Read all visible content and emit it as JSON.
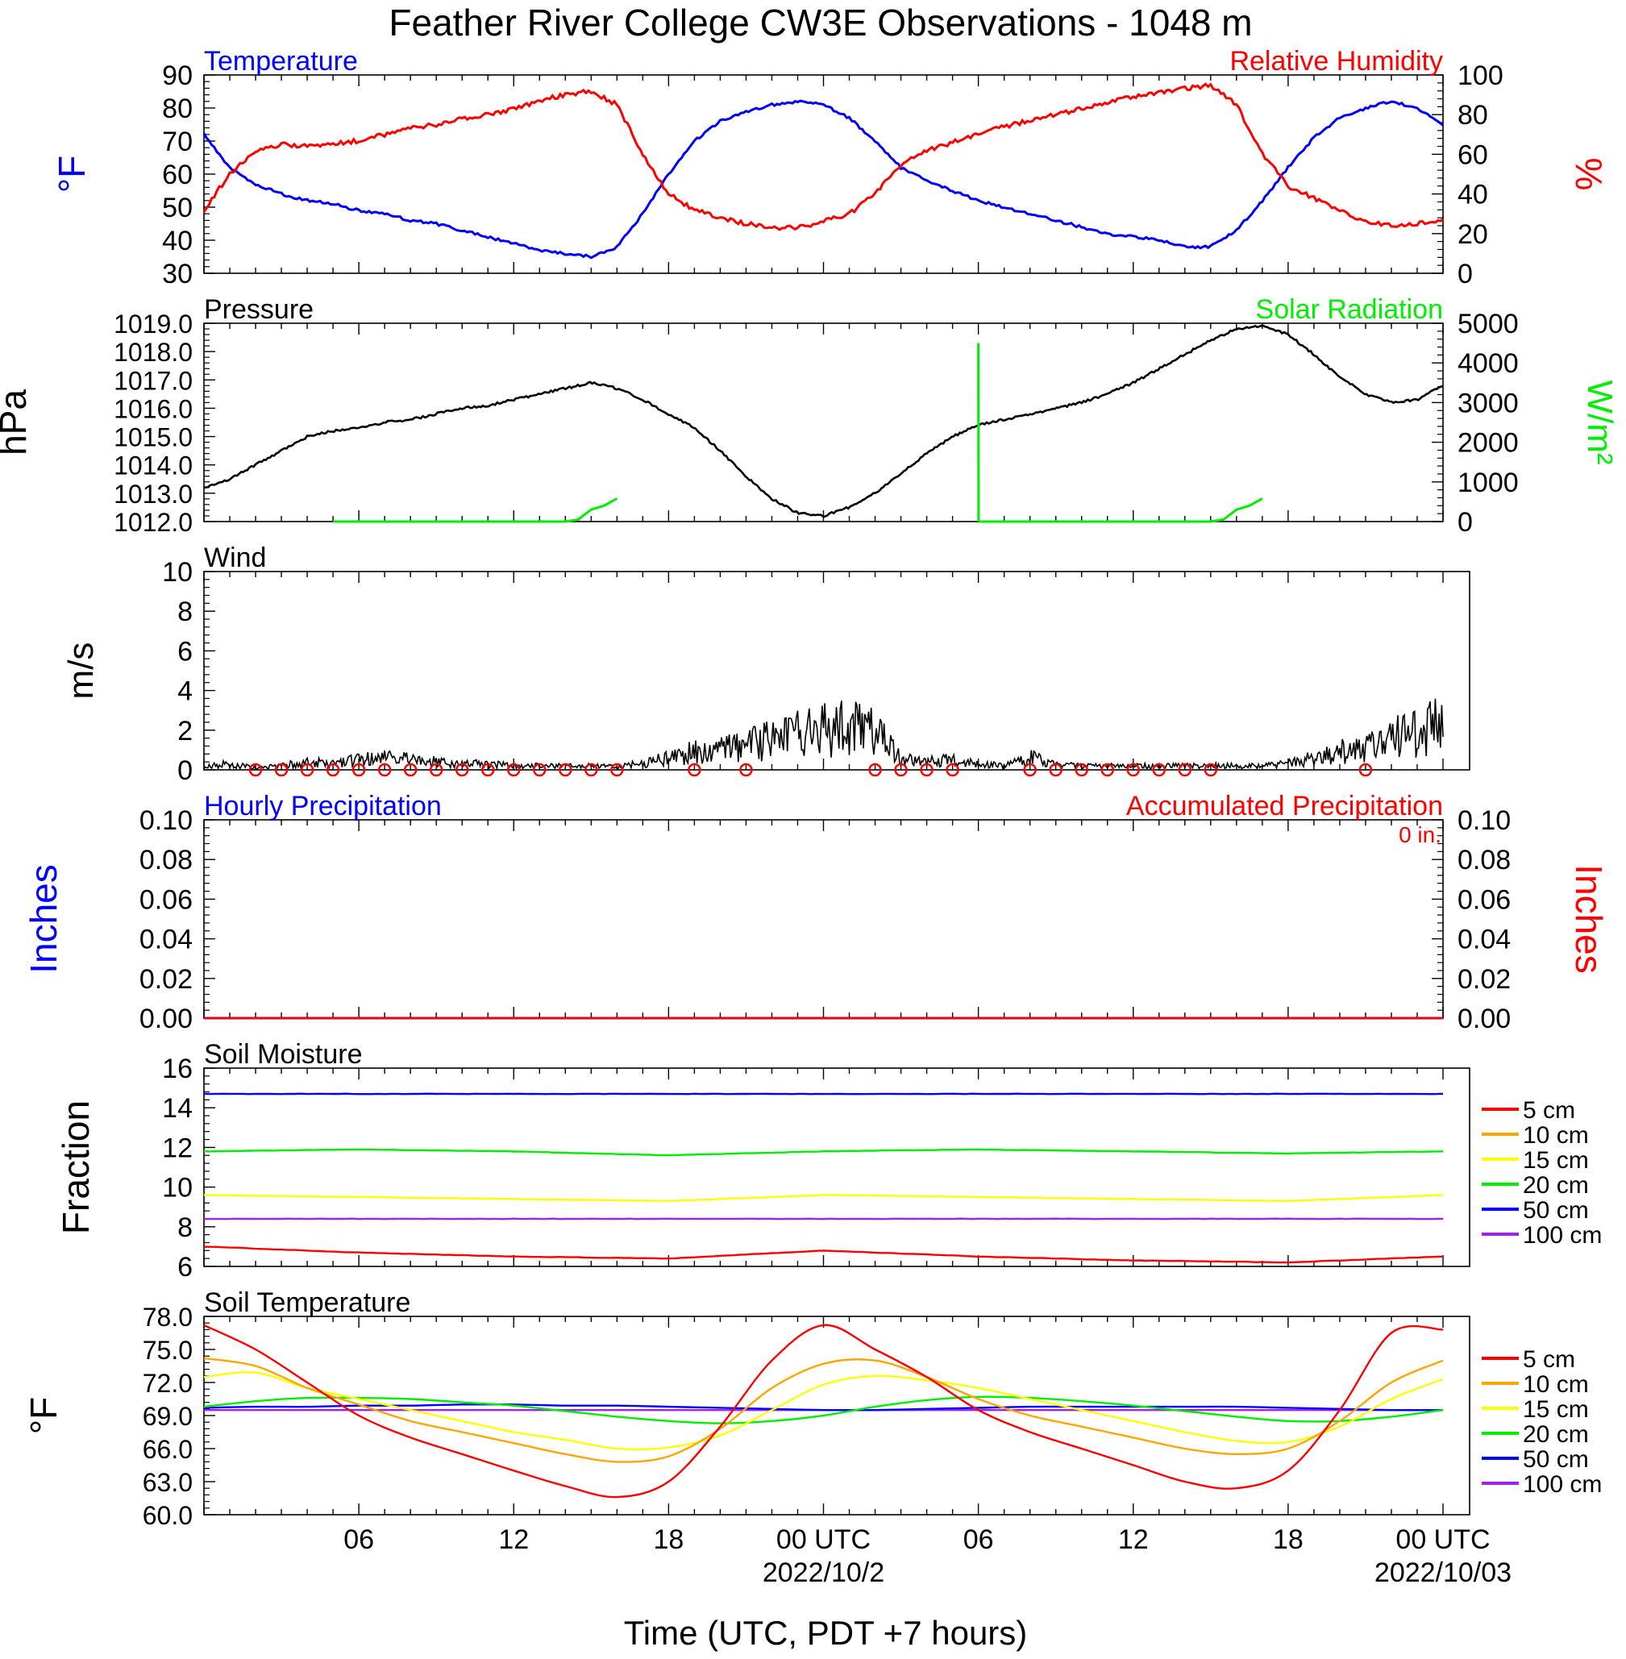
{
  "title": "Feather River College CW3E Observations - 1048 m",
  "x_axis": {
    "label": "Time (UTC, PDT +7 hours)",
    "ticks": [
      "06",
      "12",
      "18",
      "00 UTC",
      "06",
      "12",
      "18",
      "00 UTC"
    ],
    "dates": [
      "2022/10/2",
      "2022/10/03"
    ]
  },
  "colors": {
    "temperature": "#0000ff",
    "humidity": "#ff0000",
    "pressure": "#000000",
    "solar": "#00ee00",
    "wind": "#000000",
    "wind_barb": "#ff0000",
    "hourly_precip": "#0000ff",
    "accum_precip": "#ff0000",
    "depth_5": "#ff0000",
    "depth_10": "#ffa500",
    "depth_15": "#ffff00",
    "depth_20": "#00ee00",
    "depth_50": "#0000ff",
    "depth_100": "#a020f0"
  },
  "chart_data": [
    {
      "type": "line",
      "panel": "temperature-humidity",
      "left_title": "Temperature",
      "right_title": "Relative Humidity",
      "ylabel_left": "oF",
      "ylabel_right": "%",
      "ylim_left": [
        30,
        90
      ],
      "ylim_right": [
        0,
        100
      ],
      "yticks_left": [
        "90",
        "80",
        "70",
        "60",
        "50",
        "40",
        "30"
      ],
      "yticks_right": [
        "100",
        "80",
        "60",
        "40",
        "20",
        "0"
      ],
      "x_hours": [
        0,
        1,
        2,
        3,
        4,
        5,
        6,
        7,
        8,
        9,
        10,
        11,
        12,
        13,
        14,
        15,
        16,
        17,
        18,
        19,
        20,
        21,
        22,
        23,
        24,
        25,
        26,
        27,
        28,
        29,
        30,
        31,
        32,
        33,
        34,
        35,
        36,
        37,
        38,
        39,
        40,
        41,
        42,
        43,
        44,
        45,
        46,
        47,
        48
      ],
      "series": [
        {
          "name": "Temperature",
          "axis": "left",
          "values": [
            72,
            62,
            57,
            54,
            52,
            51,
            49,
            48,
            46,
            45,
            43,
            41,
            39,
            37,
            36,
            35,
            38,
            48,
            60,
            70,
            76,
            79,
            81,
            82,
            81,
            77,
            70,
            62,
            58,
            55,
            52,
            50,
            48,
            46,
            44,
            42,
            41,
            40,
            38,
            38,
            43,
            52,
            62,
            71,
            77,
            80,
            82,
            80,
            75
          ]
        },
        {
          "name": "Relative Humidity",
          "axis": "right",
          "values": [
            32,
            50,
            62,
            65,
            64,
            65,
            67,
            70,
            73,
            75,
            78,
            80,
            83,
            87,
            90,
            92,
            85,
            60,
            40,
            32,
            28,
            25,
            23,
            23,
            26,
            30,
            40,
            55,
            62,
            66,
            70,
            74,
            77,
            80,
            83,
            86,
            89,
            91,
            93,
            95,
            85,
            60,
            44,
            38,
            32,
            26,
            24,
            25,
            27
          ]
        }
      ]
    },
    {
      "type": "line",
      "panel": "pressure-solar",
      "left_title": "Pressure",
      "right_title": "Solar Radiation",
      "ylabel_left": "hPa",
      "ylabel_right": "W/m2",
      "ylim_left": [
        1012,
        1019
      ],
      "ylim_right": [
        0,
        5000
      ],
      "yticks_left": [
        "1019.0",
        "1018.0",
        "1017.0",
        "1016.0",
        "1015.0",
        "1014.0",
        "1013.0",
        "1012.0"
      ],
      "yticks_right": [
        "5000",
        "4000",
        "3000",
        "2000",
        "1000",
        "0"
      ],
      "x_hours": [
        0,
        1,
        2,
        3,
        4,
        5,
        6,
        7,
        8,
        9,
        10,
        11,
        12,
        13,
        14,
        15,
        16,
        17,
        18,
        19,
        20,
        21,
        22,
        23,
        24,
        25,
        26,
        27,
        28,
        29,
        30,
        31,
        32,
        33,
        34,
        35,
        36,
        37,
        38,
        39,
        40,
        41,
        42,
        43,
        44,
        45,
        46,
        47,
        48
      ],
      "series": [
        {
          "name": "Pressure",
          "axis": "left",
          "values": [
            1013.2,
            1013.5,
            1014.0,
            1014.5,
            1015.0,
            1015.2,
            1015.3,
            1015.5,
            1015.6,
            1015.8,
            1016.0,
            1016.1,
            1016.3,
            1016.5,
            1016.7,
            1016.9,
            1016.7,
            1016.3,
            1015.8,
            1015.3,
            1014.5,
            1013.6,
            1012.8,
            1012.3,
            1012.2,
            1012.5,
            1013.0,
            1013.7,
            1014.4,
            1015.0,
            1015.4,
            1015.6,
            1015.8,
            1016.0,
            1016.2,
            1016.5,
            1016.9,
            1017.4,
            1017.9,
            1018.4,
            1018.8,
            1018.9,
            1018.6,
            1017.9,
            1017.1,
            1016.5,
            1016.2,
            1016.3,
            1016.8
          ]
        },
        {
          "name": "Solar Radiation",
          "axis": "right",
          "x_hours": [
            5,
            8,
            11,
            14,
            14.5,
            15,
            15.5,
            16,
            30,
            30.01,
            30.02,
            33,
            36,
            39,
            39.5,
            40,
            40.5,
            41
          ],
          "values": [
            0,
            0,
            0,
            0,
            50,
            300,
            400,
            580,
            4500,
            0,
            0,
            0,
            0,
            0,
            50,
            300,
            400,
            580
          ]
        }
      ]
    },
    {
      "type": "line",
      "panel": "wind",
      "title": "Wind",
      "ylabel": "m/s",
      "ylim": [
        0,
        10
      ],
      "yticks": [
        "10",
        "8",
        "6",
        "4",
        "2",
        "0"
      ],
      "x_hours": [
        0,
        1,
        2,
        3,
        4,
        5,
        6,
        7,
        8,
        9,
        10,
        11,
        12,
        13,
        14,
        15,
        16,
        17,
        18,
        19,
        20,
        21,
        22,
        23,
        24,
        25,
        26,
        27,
        28,
        29,
        30,
        31,
        32,
        33,
        34,
        35,
        36,
        37,
        38,
        39,
        40,
        41,
        42,
        43,
        44,
        45,
        46,
        47,
        48
      ],
      "series": [
        {
          "name": "Wind Speed",
          "values": [
            0.2,
            0.3,
            0.1,
            0.2,
            0.4,
            0.3,
            0.5,
            0.6,
            0.5,
            0.4,
            0.3,
            0.3,
            0.2,
            0.2,
            0.2,
            0.2,
            0.2,
            0.3,
            0.6,
            0.9,
            1.0,
            1.2,
            1.5,
            1.8,
            2.0,
            2.1,
            1.8,
            0.6,
            0.4,
            0.5,
            0.3,
            0.2,
            0.6,
            0.3,
            0.2,
            0.2,
            0.2,
            0.2,
            0.2,
            0.2,
            0.2,
            0.2,
            0.3,
            0.6,
            0.9,
            1.1,
            1.5,
            2.0,
            2.4
          ]
        }
      ],
      "calm_markers_hours": [
        2,
        3,
        4,
        5,
        6,
        7,
        8,
        9,
        10,
        11,
        12,
        13,
        14,
        15,
        16,
        19,
        21,
        26,
        27,
        28,
        29,
        32,
        33,
        34,
        35,
        36,
        37,
        38,
        39,
        45
      ]
    },
    {
      "type": "line",
      "panel": "precipitation",
      "left_title": "Hourly Precipitation",
      "right_title": "Accumulated Precipitation",
      "total_label": "0 in.",
      "ylabel_left": "Inches",
      "ylabel_right": "Inches",
      "ylim": [
        0,
        0.1
      ],
      "yticks": [
        "0.10",
        "0.08",
        "0.06",
        "0.04",
        "0.02",
        "0.00"
      ],
      "x_hours": [
        0,
        48
      ],
      "series": [
        {
          "name": "Hourly Precipitation",
          "values": [
            0,
            0
          ]
        },
        {
          "name": "Accumulated Precipitation",
          "values": [
            0,
            0
          ]
        }
      ]
    },
    {
      "type": "line",
      "panel": "soil-moisture",
      "title": "Soil Moisture",
      "ylabel": "Fraction",
      "ylim": [
        6,
        16
      ],
      "yticks": [
        "16",
        "14",
        "12",
        "10",
        "8",
        "6"
      ],
      "legend": [
        "5 cm",
        "10 cm",
        "15 cm",
        "20 cm",
        "50 cm",
        "100 cm"
      ],
      "x_hours": [
        0,
        6,
        12,
        18,
        24,
        30,
        36,
        42,
        48
      ],
      "series": [
        {
          "name": "5 cm",
          "values": [
            7.0,
            6.7,
            6.5,
            6.4,
            6.8,
            6.5,
            6.3,
            6.2,
            6.5
          ]
        },
        {
          "name": "15 cm",
          "values": [
            9.6,
            9.5,
            9.4,
            9.3,
            9.6,
            9.5,
            9.4,
            9.3,
            9.6
          ]
        },
        {
          "name": "20 cm",
          "values": [
            11.8,
            11.9,
            11.8,
            11.6,
            11.8,
            11.9,
            11.8,
            11.7,
            11.8
          ]
        },
        {
          "name": "50 cm",
          "values": [
            14.7,
            14.7,
            14.7,
            14.7,
            14.7,
            14.7,
            14.7,
            14.7,
            14.7
          ]
        },
        {
          "name": "100 cm",
          "values": [
            8.4,
            8.4,
            8.4,
            8.4,
            8.4,
            8.4,
            8.4,
            8.4,
            8.4
          ]
        }
      ]
    },
    {
      "type": "line",
      "panel": "soil-temperature",
      "title": "Soil Temperature",
      "ylabel": "oF",
      "ylim": [
        60,
        78
      ],
      "yticks": [
        "78.0",
        "75.0",
        "72.0",
        "69.0",
        "66.0",
        "63.0",
        "60.0"
      ],
      "legend": [
        "5 cm",
        "10 cm",
        "15 cm",
        "20 cm",
        "50 cm",
        "100 cm"
      ],
      "x_hours": [
        0,
        2,
        4,
        6,
        8,
        10,
        12,
        14,
        16,
        18,
        20,
        22,
        24,
        26,
        28,
        30,
        32,
        34,
        36,
        38,
        40,
        42,
        44,
        46,
        48
      ],
      "series": [
        {
          "name": "5 cm",
          "values": [
            77.2,
            75.0,
            72.0,
            69.0,
            67.0,
            65.5,
            64.0,
            62.6,
            61.6,
            63.0,
            68.0,
            74.0,
            77.2,
            75.0,
            72.5,
            69.5,
            67.5,
            66.0,
            64.5,
            63.0,
            62.4,
            64.0,
            69.5,
            76.5,
            76.8
          ]
        },
        {
          "name": "10 cm",
          "values": [
            74.2,
            73.5,
            71.5,
            70.0,
            68.5,
            67.5,
            66.5,
            65.5,
            64.8,
            65.3,
            67.8,
            71.5,
            73.7,
            74.0,
            72.5,
            70.5,
            69.0,
            68.0,
            67.0,
            66.0,
            65.5,
            66.0,
            68.5,
            72.0,
            74.0
          ]
        },
        {
          "name": "15 cm",
          "values": [
            72.5,
            72.9,
            71.5,
            70.5,
            69.5,
            68.5,
            67.5,
            66.8,
            66.0,
            66.1,
            67.2,
            69.5,
            71.8,
            72.6,
            72.2,
            71.5,
            70.5,
            69.5,
            68.5,
            67.5,
            66.7,
            66.6,
            68.0,
            70.5,
            72.3
          ]
        },
        {
          "name": "20 cm",
          "values": [
            69.8,
            70.3,
            70.6,
            70.6,
            70.5,
            70.2,
            69.9,
            69.4,
            68.9,
            68.5,
            68.3,
            68.5,
            69.0,
            69.8,
            70.4,
            70.7,
            70.6,
            70.3,
            69.9,
            69.4,
            68.9,
            68.5,
            68.5,
            68.9,
            69.5
          ]
        },
        {
          "name": "50 cm",
          "values": [
            69.7,
            69.8,
            69.8,
            69.9,
            69.9,
            70.0,
            70.0,
            69.9,
            69.9,
            69.8,
            69.7,
            69.6,
            69.5,
            69.5,
            69.6,
            69.7,
            69.8,
            69.8,
            69.8,
            69.8,
            69.8,
            69.7,
            69.6,
            69.5,
            69.5
          ]
        },
        {
          "name": "100 cm",
          "values": [
            69.5,
            69.5,
            69.5,
            69.5,
            69.5,
            69.5,
            69.5,
            69.5,
            69.5,
            69.5,
            69.5,
            69.5,
            69.5,
            69.5,
            69.5,
            69.5,
            69.5,
            69.5,
            69.5,
            69.5,
            69.5,
            69.5,
            69.5,
            69.5,
            69.5
          ]
        }
      ]
    }
  ]
}
